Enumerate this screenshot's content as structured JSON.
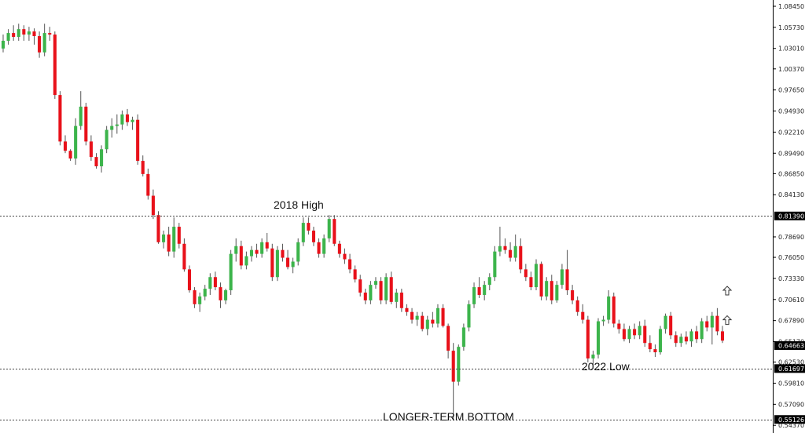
{
  "chart_data": {
    "type": "candlestick",
    "ylim": [
      0.5338,
      1.0926
    ],
    "y_ticks": [
      "1.08450",
      "1.05730",
      "1.03010",
      "1.00370",
      "0.97650",
      "0.94930",
      "0.92210",
      "0.89490",
      "0.86850",
      "0.84130",
      "0.78690",
      "0.76050",
      "0.73330",
      "0.70610",
      "0.67890",
      "0.65170",
      "0.62530",
      "0.59810",
      "0.57090",
      "0.54370"
    ],
    "levels": [
      {
        "price": 0.8139,
        "label": "0.81390",
        "annotation": "2018 High"
      },
      {
        "price": 0.61697,
        "label": "0.61697",
        "annotation": "2022 Low"
      },
      {
        "price": 0.55126,
        "label": "0.55126",
        "annotation": "LONGER-TERM BOTTOM"
      }
    ],
    "current_price": {
      "price": 0.64663,
      "label": "0.64663"
    },
    "colors": {
      "up": "#3cb44b",
      "down": "#e8111a",
      "wick": "#555555",
      "level": "#444444",
      "tag_bg": "#000000"
    },
    "arrow_icons": [
      {
        "name": "up-arrow-icon",
        "price": 0.717
      },
      {
        "name": "up-arrow-icon",
        "price": 0.679
      }
    ],
    "candles": [
      [
        1.03,
        1.048,
        1.025,
        1.04
      ],
      [
        1.04,
        1.055,
        1.035,
        1.05
      ],
      [
        1.05,
        1.06,
        1.04,
        1.045
      ],
      [
        1.045,
        1.062,
        1.04,
        1.055
      ],
      [
        1.055,
        1.06,
        1.04,
        1.048
      ],
      [
        1.048,
        1.058,
        1.04,
        1.052
      ],
      [
        1.052,
        1.056,
        1.035,
        1.046
      ],
      [
        1.046,
        1.052,
        1.018,
        1.025
      ],
      [
        1.025,
        1.062,
        1.02,
        1.05
      ],
      [
        1.05,
        1.058,
        1.04,
        1.048
      ],
      [
        1.048,
        1.052,
        0.965,
        0.97
      ],
      [
        0.97,
        0.975,
        0.905,
        0.91
      ],
      [
        0.91,
        0.918,
        0.895,
        0.898
      ],
      [
        0.898,
        0.9,
        0.885,
        0.888
      ],
      [
        0.888,
        0.94,
        0.88,
        0.93
      ],
      [
        0.93,
        0.975,
        0.925,
        0.955
      ],
      [
        0.955,
        0.96,
        0.905,
        0.91
      ],
      [
        0.91,
        0.918,
        0.885,
        0.89
      ],
      [
        0.89,
        0.895,
        0.875,
        0.878
      ],
      [
        0.878,
        0.905,
        0.87,
        0.9
      ],
      [
        0.9,
        0.93,
        0.895,
        0.925
      ],
      [
        0.925,
        0.94,
        0.915,
        0.93
      ],
      [
        0.93,
        0.945,
        0.92,
        0.932
      ],
      [
        0.932,
        0.95,
        0.925,
        0.945
      ],
      [
        0.945,
        0.952,
        0.93,
        0.935
      ],
      [
        0.935,
        0.942,
        0.925,
        0.938
      ],
      [
        0.938,
        0.945,
        0.88,
        0.885
      ],
      [
        0.885,
        0.892,
        0.865,
        0.868
      ],
      [
        0.868,
        0.875,
        0.835,
        0.84
      ],
      [
        0.84,
        0.848,
        0.81,
        0.815
      ],
      [
        0.815,
        0.82,
        0.778,
        0.78
      ],
      [
        0.78,
        0.795,
        0.772,
        0.79
      ],
      [
        0.79,
        0.8,
        0.762,
        0.768
      ],
      [
        0.768,
        0.812,
        0.76,
        0.8
      ],
      [
        0.8,
        0.805,
        0.772,
        0.778
      ],
      [
        0.778,
        0.785,
        0.742,
        0.745
      ],
      [
        0.745,
        0.75,
        0.715,
        0.718
      ],
      [
        0.718,
        0.722,
        0.695,
        0.7
      ],
      [
        0.7,
        0.715,
        0.69,
        0.71
      ],
      [
        0.71,
        0.725,
        0.705,
        0.72
      ],
      [
        0.72,
        0.74,
        0.712,
        0.735
      ],
      [
        0.735,
        0.742,
        0.718,
        0.722
      ],
      [
        0.722,
        0.728,
        0.695,
        0.705
      ],
      [
        0.705,
        0.72,
        0.7,
        0.718
      ],
      [
        0.718,
        0.77,
        0.712,
        0.765
      ],
      [
        0.765,
        0.785,
        0.755,
        0.775
      ],
      [
        0.775,
        0.782,
        0.745,
        0.75
      ],
      [
        0.75,
        0.768,
        0.745,
        0.762
      ],
      [
        0.762,
        0.775,
        0.755,
        0.77
      ],
      [
        0.77,
        0.778,
        0.76,
        0.765
      ],
      [
        0.765,
        0.785,
        0.76,
        0.78
      ],
      [
        0.78,
        0.792,
        0.768,
        0.772
      ],
      [
        0.772,
        0.778,
        0.73,
        0.735
      ],
      [
        0.735,
        0.775,
        0.73,
        0.77
      ],
      [
        0.77,
        0.778,
        0.755,
        0.76
      ],
      [
        0.76,
        0.77,
        0.745,
        0.748
      ],
      [
        0.748,
        0.76,
        0.74,
        0.755
      ],
      [
        0.755,
        0.785,
        0.75,
        0.78
      ],
      [
        0.78,
        0.812,
        0.775,
        0.805
      ],
      [
        0.805,
        0.812,
        0.79,
        0.795
      ],
      [
        0.795,
        0.8,
        0.775,
        0.78
      ],
      [
        0.78,
        0.785,
        0.76,
        0.765
      ],
      [
        0.765,
        0.79,
        0.76,
        0.785
      ],
      [
        0.785,
        0.815,
        0.78,
        0.81
      ],
      [
        0.81,
        0.815,
        0.775,
        0.778
      ],
      [
        0.778,
        0.782,
        0.76,
        0.765
      ],
      [
        0.765,
        0.772,
        0.752,
        0.758
      ],
      [
        0.758,
        0.765,
        0.74,
        0.745
      ],
      [
        0.745,
        0.75,
        0.728,
        0.732
      ],
      [
        0.732,
        0.738,
        0.71,
        0.715
      ],
      [
        0.715,
        0.72,
        0.7,
        0.705
      ],
      [
        0.705,
        0.73,
        0.7,
        0.725
      ],
      [
        0.725,
        0.735,
        0.72,
        0.73
      ],
      [
        0.73,
        0.735,
        0.7,
        0.705
      ],
      [
        0.705,
        0.74,
        0.7,
        0.735
      ],
      [
        0.735,
        0.742,
        0.7,
        0.703
      ],
      [
        0.703,
        0.72,
        0.695,
        0.715
      ],
      [
        0.715,
        0.72,
        0.69,
        0.695
      ],
      [
        0.695,
        0.7,
        0.685,
        0.69
      ],
      [
        0.69,
        0.695,
        0.675,
        0.68
      ],
      [
        0.68,
        0.69,
        0.672,
        0.685
      ],
      [
        0.685,
        0.69,
        0.665,
        0.668
      ],
      [
        0.668,
        0.685,
        0.66,
        0.68
      ],
      [
        0.68,
        0.69,
        0.67,
        0.675
      ],
      [
        0.675,
        0.7,
        0.67,
        0.695
      ],
      [
        0.695,
        0.7,
        0.67,
        0.672
      ],
      [
        0.672,
        0.675,
        0.63,
        0.64
      ],
      [
        0.64,
        0.65,
        0.551,
        0.6
      ],
      [
        0.6,
        0.648,
        0.595,
        0.645
      ],
      [
        0.645,
        0.675,
        0.64,
        0.67
      ],
      [
        0.67,
        0.705,
        0.665,
        0.7
      ],
      [
        0.7,
        0.728,
        0.695,
        0.722
      ],
      [
        0.722,
        0.735,
        0.708,
        0.712
      ],
      [
        0.712,
        0.73,
        0.705,
        0.725
      ],
      [
        0.725,
        0.74,
        0.718,
        0.735
      ],
      [
        0.735,
        0.775,
        0.73,
        0.768
      ],
      [
        0.768,
        0.8,
        0.762,
        0.775
      ],
      [
        0.775,
        0.785,
        0.765,
        0.77
      ],
      [
        0.77,
        0.78,
        0.755,
        0.76
      ],
      [
        0.76,
        0.79,
        0.755,
        0.775
      ],
      [
        0.775,
        0.785,
        0.74,
        0.745
      ],
      [
        0.745,
        0.752,
        0.73,
        0.735
      ],
      [
        0.735,
        0.742,
        0.718,
        0.722
      ],
      [
        0.722,
        0.758,
        0.718,
        0.752
      ],
      [
        0.752,
        0.755,
        0.705,
        0.71
      ],
      [
        0.71,
        0.735,
        0.705,
        0.73
      ],
      [
        0.73,
        0.738,
        0.7,
        0.705
      ],
      [
        0.705,
        0.73,
        0.702,
        0.725
      ],
      [
        0.725,
        0.752,
        0.72,
        0.745
      ],
      [
        0.745,
        0.77,
        0.712,
        0.718
      ],
      [
        0.718,
        0.725,
        0.7,
        0.705
      ],
      [
        0.705,
        0.71,
        0.685,
        0.69
      ],
      [
        0.69,
        0.7,
        0.675,
        0.68
      ],
      [
        0.68,
        0.685,
        0.625,
        0.63
      ],
      [
        0.63,
        0.64,
        0.617,
        0.635
      ],
      [
        0.635,
        0.682,
        0.63,
        0.678
      ],
      [
        0.678,
        0.685,
        0.672,
        0.68
      ],
      [
        0.68,
        0.718,
        0.675,
        0.71
      ],
      [
        0.71,
        0.715,
        0.67,
        0.675
      ],
      [
        0.675,
        0.68,
        0.662,
        0.668
      ],
      [
        0.668,
        0.675,
        0.652,
        0.655
      ],
      [
        0.655,
        0.672,
        0.65,
        0.668
      ],
      [
        0.668,
        0.675,
        0.655,
        0.66
      ],
      [
        0.66,
        0.678,
        0.655,
        0.672
      ],
      [
        0.672,
        0.68,
        0.645,
        0.65
      ],
      [
        0.65,
        0.66,
        0.638,
        0.642
      ],
      [
        0.642,
        0.648,
        0.632,
        0.638
      ],
      [
        0.638,
        0.672,
        0.635,
        0.668
      ],
      [
        0.668,
        0.688,
        0.662,
        0.685
      ],
      [
        0.685,
        0.69,
        0.655,
        0.66
      ],
      [
        0.66,
        0.665,
        0.645,
        0.65
      ],
      [
        0.65,
        0.662,
        0.645,
        0.658
      ],
      [
        0.658,
        0.665,
        0.648,
        0.652
      ],
      [
        0.652,
        0.668,
        0.645,
        0.665
      ],
      [
        0.665,
        0.672,
        0.65,
        0.655
      ],
      [
        0.655,
        0.682,
        0.65,
        0.678
      ],
      [
        0.678,
        0.685,
        0.665,
        0.67
      ],
      [
        0.67,
        0.69,
        0.648,
        0.685
      ],
      [
        0.685,
        0.695,
        0.66,
        0.665
      ],
      [
        0.665,
        0.672,
        0.65,
        0.653
      ]
    ]
  },
  "annotations": {
    "high_2018": "2018 High",
    "low_2022": "2022 Low",
    "longer_term_bottom": "LONGER-TERM BOTTOM"
  }
}
